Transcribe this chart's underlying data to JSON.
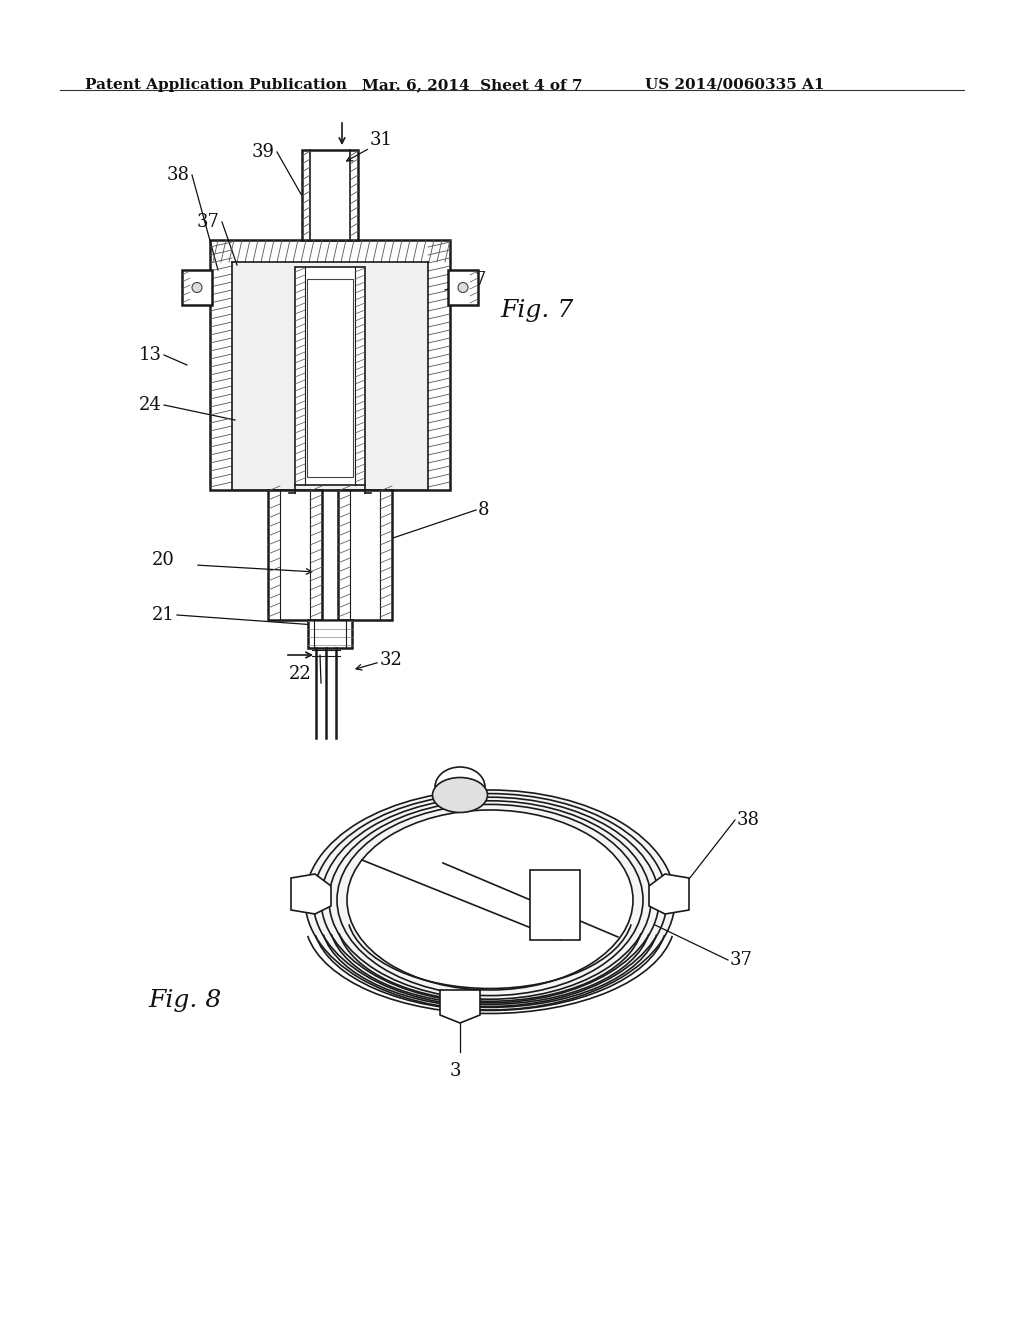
{
  "background_color": "#ffffff",
  "header_left": "Patent Application Publication",
  "header_center": "Mar. 6, 2014  Sheet 4 of 7",
  "header_right": "US 2014/0060335 A1",
  "fig7_label": "Fig. 7",
  "fig8_label": "Fig. 8",
  "header_fontsize": 11,
  "label_fontsize": 12,
  "part_label_fontsize": 13
}
